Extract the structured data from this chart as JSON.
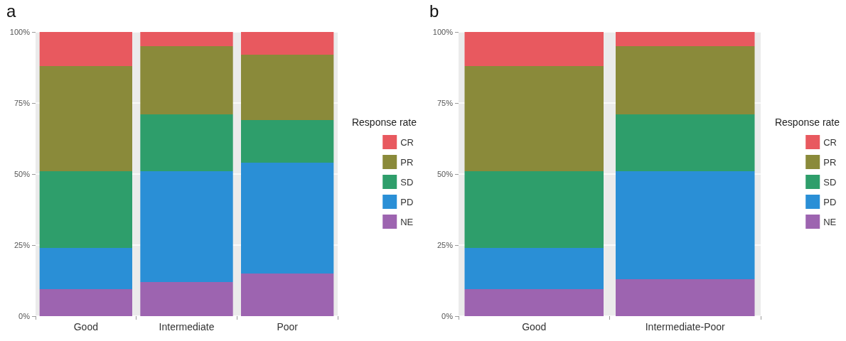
{
  "chart_data": [
    {
      "type": "bar",
      "title": "a",
      "stacked": true,
      "categories": [
        "Good",
        "Intermediate",
        "Poor"
      ],
      "legend_title": "Response rate",
      "legend": "right",
      "grid": "y",
      "ylim": [
        0,
        100
      ],
      "yticks": [
        {
          "value": 0,
          "label": "0%"
        },
        {
          "value": 25,
          "label": "25%"
        },
        {
          "value": 50,
          "label": "50%"
        },
        {
          "value": 75,
          "label": "75%"
        },
        {
          "value": 100,
          "label": "100%"
        }
      ],
      "series": [
        {
          "name": "NE",
          "color": "#9d64b0",
          "values": [
            9.5,
            12,
            15
          ]
        },
        {
          "name": "PD",
          "color": "#2a8fd6",
          "values": [
            14.5,
            39,
            39
          ]
        },
        {
          "name": "SD",
          "color": "#2e9e6b",
          "values": [
            27,
            20,
            15
          ]
        },
        {
          "name": "PR",
          "color": "#8a8a3a",
          "values": [
            37,
            24,
            23
          ]
        },
        {
          "name": "CR",
          "color": "#e8595f",
          "values": [
            12,
            5,
            8
          ]
        }
      ]
    },
    {
      "type": "bar",
      "title": "b",
      "stacked": true,
      "categories": [
        "Good",
        "Intermediate-Poor"
      ],
      "legend_title": "Response rate",
      "legend": "right",
      "grid": "y",
      "ylim": [
        0,
        100
      ],
      "yticks": [
        {
          "value": 0,
          "label": "0%"
        },
        {
          "value": 25,
          "label": "25%"
        },
        {
          "value": 50,
          "label": "50%"
        },
        {
          "value": 75,
          "label": "75%"
        },
        {
          "value": 100,
          "label": "100%"
        }
      ],
      "series": [
        {
          "name": "NE",
          "color": "#9d64b0",
          "values": [
            9.5,
            13
          ]
        },
        {
          "name": "PD",
          "color": "#2a8fd6",
          "values": [
            14.5,
            38
          ]
        },
        {
          "name": "SD",
          "color": "#2e9e6b",
          "values": [
            27,
            20
          ]
        },
        {
          "name": "PR",
          "color": "#8a8a3a",
          "values": [
            37,
            24
          ]
        },
        {
          "name": "CR",
          "color": "#e8595f",
          "values": [
            12,
            5
          ]
        }
      ]
    }
  ]
}
